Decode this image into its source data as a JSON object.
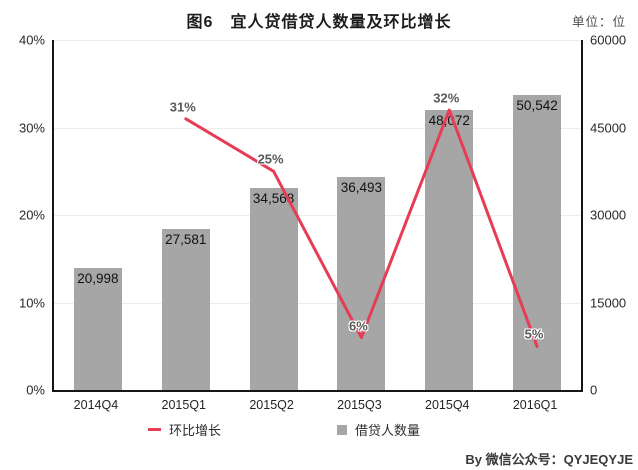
{
  "header": {
    "title": "图6　宜人贷借贷人数量及环比增长",
    "unit_label": "单位：位"
  },
  "footer": {
    "byline": "By  微信公众号：QYJEQYJE"
  },
  "legend": [
    {
      "label": "环比增长",
      "marker": "line-dash-icon",
      "color": "#e73c55"
    },
    {
      "label": "借贷人数量",
      "marker": "square-icon",
      "color": "#a6a6a6"
    }
  ],
  "colors": {
    "bar": "#a6a6a6",
    "line": "#e73c55",
    "grid": "#ededed",
    "axis": "#161616"
  },
  "chart_data": {
    "type": "bar+line",
    "title": "图6　宜人贷借贷人数量及环比增长",
    "categories": [
      "2014Q4",
      "2015Q1",
      "2015Q2",
      "2015Q3",
      "2015Q4",
      "2016Q1"
    ],
    "series": [
      {
        "name": "借贷人数量",
        "type": "bar",
        "axis": "right",
        "values": [
          20998,
          27581,
          34568,
          36493,
          48072,
          50542
        ],
        "labels": [
          "20,998",
          "27,581",
          "34,568",
          "36,493",
          "48,072",
          "50,542"
        ],
        "color": "#a6a6a6"
      },
      {
        "name": "环比增长",
        "type": "line",
        "axis": "left",
        "values": [
          null,
          31,
          25,
          6,
          32,
          5
        ],
        "labels": [
          null,
          "31%",
          "25%",
          "6%",
          "32%",
          "5%"
        ],
        "color": "#e73c55"
      }
    ],
    "left_axis": {
      "min": 0,
      "max": 40,
      "ticks": [
        "0%",
        "10%",
        "20%",
        "30%",
        "40%"
      ]
    },
    "right_axis": {
      "min": 0,
      "max": 60000,
      "ticks": [
        "0",
        "15000",
        "30000",
        "45000",
        "60000"
      ]
    },
    "grid": true,
    "legend_position": "bottom"
  }
}
